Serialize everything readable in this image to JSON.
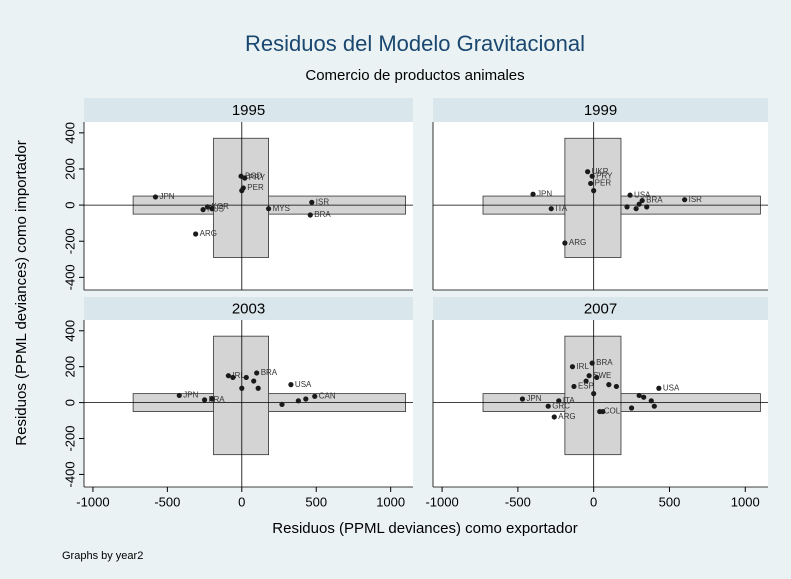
{
  "chart_data": {
    "type": "scatter",
    "title": "Residuos del Modelo Gravitacional",
    "subtitle": "Comercio de productos animales",
    "xlabel": "Residuos (PPML deviances) como exportador",
    "ylabel": "Residuos (PPML deviances) como importador",
    "note": "Graphs by year2",
    "xlim": [
      -1060,
      1150
    ],
    "ylim": [
      -470,
      460
    ],
    "xticks": [
      -1000,
      -500,
      0,
      500,
      1000
    ],
    "yticks": [
      -400,
      -200,
      0,
      200,
      400
    ],
    "color": "#1a1a1a",
    "box_color": "#d4d4d4",
    "boxes": [
      {
        "x": [
          -730,
          1100
        ],
        "y": [
          -50,
          50
        ]
      },
      {
        "x": [
          -190,
          180
        ],
        "y": [
          -290,
          370
        ]
      }
    ],
    "panels": [
      {
        "title": "1995",
        "x": [
          -580,
          -5,
          20,
          10,
          -230,
          -260,
          -200,
          -310,
          180,
          470,
          460,
          0
        ],
        "y": [
          45,
          160,
          150,
          95,
          -10,
          -25,
          -20,
          -160,
          -20,
          15,
          -55,
          80
        ],
        "labels": [
          "JPN",
          "BGD",
          "PRY",
          "PER",
          "KOR",
          "RUS",
          null,
          "ARG",
          "MYS",
          "ISR",
          "BRA",
          null
        ]
      },
      {
        "title": "1999",
        "x": [
          -400,
          -40,
          -10,
          -20,
          -280,
          -190,
          240,
          320,
          600,
          220,
          280,
          350,
          0,
          300
        ],
        "y": [
          60,
          185,
          160,
          120,
          -20,
          -210,
          55,
          25,
          30,
          -10,
          -20,
          -10,
          80,
          5
        ],
        "labels": [
          "JPN",
          "UKR",
          "PRY",
          "PER",
          "ITA",
          "ARG",
          "USA",
          "BRA",
          "ISR",
          null,
          null,
          null,
          null,
          null
        ]
      },
      {
        "title": "2003",
        "x": [
          -420,
          -250,
          -90,
          100,
          330,
          490,
          30,
          0,
          80,
          110,
          270,
          380,
          430,
          -200,
          -60
        ],
        "y": [
          40,
          15,
          150,
          165,
          100,
          35,
          140,
          80,
          120,
          80,
          -10,
          10,
          20,
          20,
          140
        ],
        "labels": [
          "JPN",
          "FRA",
          "IRL",
          "BRA",
          "USA",
          "CAN",
          null,
          null,
          null,
          null,
          null,
          null,
          null,
          null,
          null
        ]
      },
      {
        "title": "2007",
        "x": [
          -470,
          -140,
          -10,
          -230,
          -300,
          -260,
          -130,
          430,
          40,
          -30,
          60,
          0,
          100,
          150,
          330,
          380,
          400,
          250,
          300,
          -50,
          20
        ],
        "y": [
          20,
          200,
          220,
          10,
          -20,
          -80,
          90,
          80,
          -50,
          150,
          -50,
          50,
          100,
          90,
          30,
          10,
          -20,
          -30,
          40,
          120,
          140
        ],
        "labels": [
          "JPN",
          "IRL",
          "BRA",
          "ITA",
          "GRC",
          "ARG",
          "ESP",
          "USA",
          "COL",
          "SWE",
          null,
          null,
          null,
          null,
          null,
          null,
          null,
          null,
          null,
          null,
          null
        ]
      }
    ]
  }
}
